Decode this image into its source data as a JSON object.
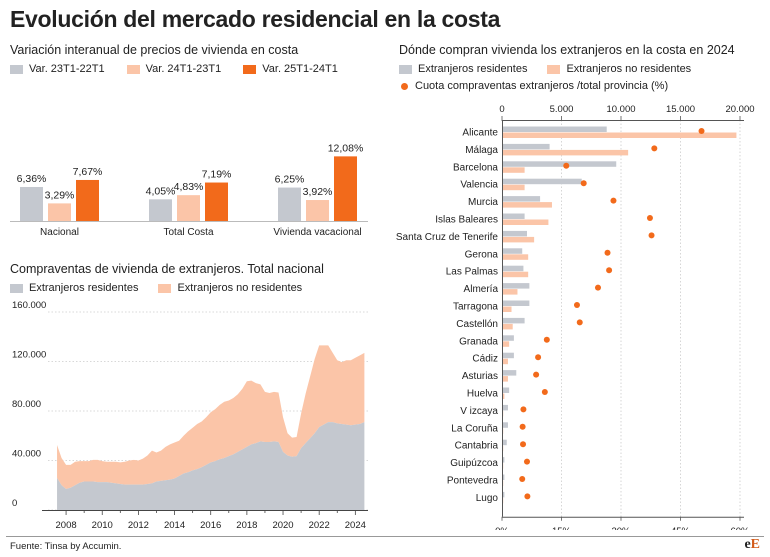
{
  "title": "Evolución del mercado residencial en la costa",
  "colors": {
    "gray": "#c4c8cf",
    "peach": "#fbc5a8",
    "orange": "#f26a1b",
    "axis": "#888888"
  },
  "chart_data": [
    {
      "type": "bar",
      "title": "Variación interanual de precios de vivienda en costa",
      "categories": [
        "Nacional",
        "Total Costa",
        "Vivienda vacacional"
      ],
      "series": [
        {
          "name": "Var. 23T1-22T1",
          "values": [
            6.36,
            4.05,
            6.25
          ],
          "labels": [
            "6,36%",
            "4,05%",
            "6,25%"
          ]
        },
        {
          "name": "Var. 24T1-23T1",
          "values": [
            3.29,
            4.83,
            3.92
          ],
          "labels": [
            "3,29%",
            "4,83%",
            "3,92%"
          ]
        },
        {
          "name": "Var. 25T1-24T1",
          "values": [
            7.67,
            7.19,
            12.08
          ],
          "labels": [
            "7,67%",
            "7,19%",
            "12,08%"
          ]
        }
      ]
    },
    {
      "type": "area",
      "title": "Compraventas de vivienda de extranjeros. Total nacional",
      "stacked": true,
      "x": [
        2007.5,
        2007.75,
        2008,
        2008.25,
        2008.5,
        2008.75,
        2009,
        2009.25,
        2009.5,
        2009.75,
        2010,
        2010.25,
        2010.5,
        2010.75,
        2011,
        2011.25,
        2011.5,
        2011.75,
        2012,
        2012.25,
        2012.5,
        2012.75,
        2013,
        2013.25,
        2013.5,
        2013.75,
        2014,
        2014.25,
        2014.5,
        2014.75,
        2015,
        2015.25,
        2015.5,
        2015.75,
        2016,
        2016.25,
        2016.5,
        2016.75,
        2017,
        2017.25,
        2017.5,
        2017.75,
        2018,
        2018.25,
        2018.5,
        2018.75,
        2019,
        2019.25,
        2019.5,
        2019.75,
        2020,
        2020.25,
        2020.5,
        2020.75,
        2021,
        2021.25,
        2021.5,
        2021.75,
        2022,
        2022.25,
        2022.5,
        2022.75,
        2023,
        2023.25,
        2023.5,
        2023.75,
        2024,
        2024.25,
        2024.5
      ],
      "series": [
        {
          "name": "Extranjeros residentes",
          "values": [
            26000,
            20000,
            17000,
            18000,
            20000,
            22000,
            23000,
            23000,
            23000,
            22500,
            22500,
            22500,
            22000,
            21500,
            21000,
            20500,
            20500,
            20500,
            20500,
            20500,
            21000,
            21500,
            23000,
            23500,
            24000,
            24500,
            25500,
            27500,
            29500,
            30500,
            32000,
            33000,
            34500,
            36500,
            38500,
            39500,
            41000,
            42000,
            43500,
            45000,
            47000,
            49000,
            51000,
            53000,
            54000,
            55500,
            55000,
            55000,
            55500,
            55000,
            47000,
            44000,
            43000,
            43500,
            50000,
            54000,
            58000,
            62000,
            67000,
            69000,
            71000,
            71000,
            70000,
            69500,
            69000,
            68500,
            69000,
            69500,
            71000
          ]
        },
        {
          "name": "Extranjeros no residentes",
          "values": [
            26500,
            22000,
            19500,
            18500,
            19000,
            17500,
            16500,
            16500,
            17500,
            18000,
            17000,
            16500,
            17000,
            17500,
            17500,
            18500,
            19500,
            20000,
            19500,
            21000,
            23000,
            26500,
            23500,
            24500,
            27000,
            28500,
            29000,
            28500,
            30500,
            33000,
            34500,
            36500,
            37000,
            38500,
            40500,
            42000,
            44000,
            45500,
            45000,
            45500,
            46500,
            49000,
            53000,
            51500,
            48500,
            46000,
            40500,
            39500,
            40000,
            40000,
            28000,
            18000,
            15500,
            15500,
            28000,
            40000,
            50000,
            60000,
            66000,
            64000,
            62000,
            56000,
            51000,
            50000,
            52000,
            52500,
            54000,
            55500,
            56000
          ]
        }
      ],
      "xticks": [
        "2008",
        "2010",
        "2012",
        "2014",
        "2016",
        "2018",
        "2020",
        "2022",
        "2024"
      ],
      "yticks": [
        "0",
        "40.000",
        "80.000",
        "120.000",
        "160.000"
      ],
      "ylim": [
        0,
        160000
      ]
    },
    {
      "type": "bar",
      "orientation": "horizontal",
      "title": "Dónde compran vivienda los extranjeros en la costa en 2024",
      "categories": [
        "Alicante",
        "Málaga",
        "Barcelona",
        "Valencia",
        "Murcia",
        "Islas Baleares",
        "Santa Cruz de Tenerife",
        "Gerona",
        "Las Palmas",
        "Almería",
        "Tarragona",
        "Castellón",
        "Granada",
        "Cádiz",
        "Asturias",
        "Huelva",
        "V izcaya",
        "La Coruña",
        "Cantabria",
        "Guipúzcoa",
        "Pontevedra",
        "Lugo"
      ],
      "series": [
        {
          "name": "Extranjeros residentes",
          "values": [
            8800,
            4000,
            9600,
            6700,
            3200,
            1900,
            2100,
            1700,
            1800,
            2300,
            2300,
            1900,
            1000,
            1000,
            1200,
            600,
            500,
            500,
            400,
            200,
            200,
            200
          ]
        },
        {
          "name": "Extranjeros no residentes",
          "values": [
            19700,
            10600,
            1900,
            1900,
            4200,
            3900,
            2700,
            2200,
            2200,
            1300,
            800,
            900,
            600,
            500,
            500,
            200,
            100,
            100,
            100,
            100,
            100,
            100
          ]
        },
        {
          "name": "Cuota compraventas extranjeros /total provincia (%)",
          "axis": "bottom",
          "values": [
            50.3,
            38.4,
            16.2,
            20.6,
            28.1,
            37.3,
            37.7,
            26.6,
            27.0,
            24.2,
            18.9,
            19.6,
            11.3,
            9.1,
            8.6,
            10.8,
            5.4,
            5.2,
            5.3,
            6.3,
            5.1,
            6.4
          ]
        }
      ],
      "top_axis": {
        "ticks": [
          "0",
          "5.000",
          "10.000",
          "15.000",
          "20.000"
        ],
        "lim": [
          0,
          20000
        ]
      },
      "bottom_axis": {
        "ticks": [
          "0%",
          "15%",
          "30%",
          "45%",
          "60%"
        ],
        "lim": [
          0,
          60
        ]
      }
    }
  ],
  "source": "Fuente: Tinsa by Accumin.",
  "logo": {
    "e": "e",
    "E": "E"
  }
}
